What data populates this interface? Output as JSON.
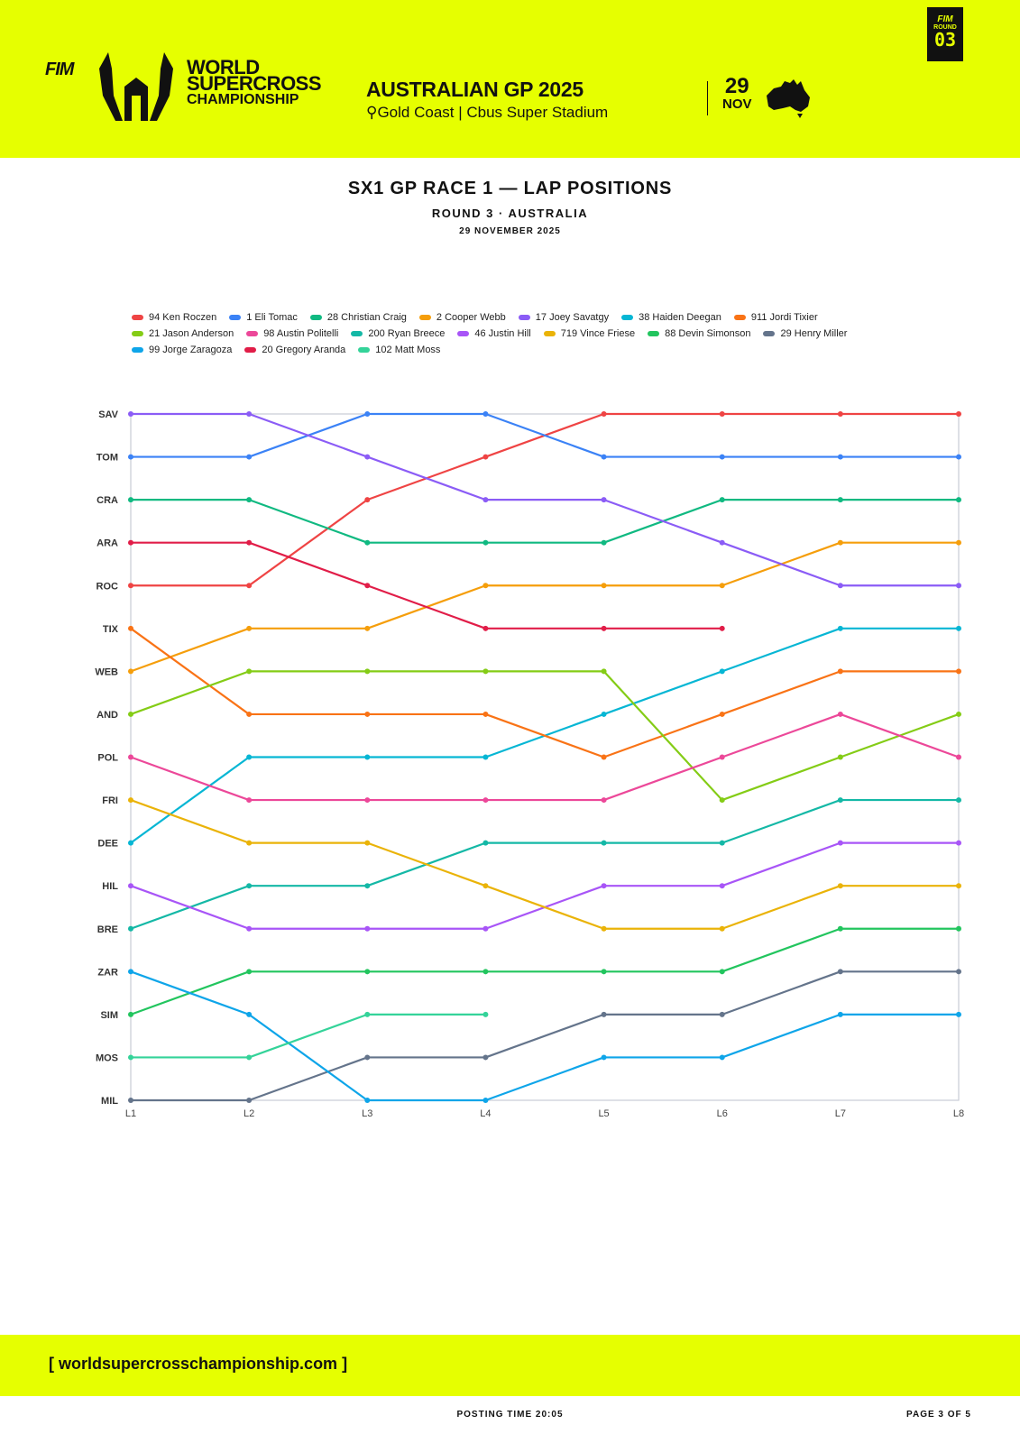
{
  "header": {
    "fim": "FIM",
    "brand_line1": "WORLD",
    "brand_line2": "SUPERCROSS",
    "brand_line3": "CHAMPIONSHIP",
    "event_title": "AUSTRALIAN GP 2025",
    "venue": "Gold Coast | Cbus Super Stadium",
    "date_day": "29",
    "date_month": "NOV",
    "round_label": "ROUND",
    "round_number": "03",
    "brand_color": "#e6ff00"
  },
  "titles": {
    "title": "SX1 GP RACE 1 — LAP POSITIONS",
    "subtitle": "ROUND 3 · AUSTRALIA",
    "date": "29 NOVEMBER 2025"
  },
  "chart_data": {
    "type": "line",
    "title": "SX1 GP RACE 1 — LAP POSITIONS",
    "x": [
      "L1",
      "L2",
      "L3",
      "L4",
      "L5",
      "L6",
      "L7",
      "L8"
    ],
    "y_tick_labels": [
      "SAV",
      "TOM",
      "CRA",
      "ARA",
      "ROC",
      "TIX",
      "WEB",
      "AND",
      "POL",
      "FRI",
      "DEE",
      "HIL",
      "BRE",
      "ZAR",
      "SIM",
      "MOS",
      "MIL"
    ],
    "ylim": [
      1,
      17
    ],
    "y_inverted": true,
    "legend_position": "top",
    "series": [
      {
        "name": "94 Ken Roczen",
        "color": "#ef4444",
        "values": [
          5,
          5,
          3,
          2,
          1,
          1,
          1,
          1
        ]
      },
      {
        "name": "1 Eli Tomac",
        "color": "#3b82f6",
        "values": [
          2,
          2,
          1,
          1,
          2,
          2,
          2,
          2
        ]
      },
      {
        "name": "28 Christian Craig",
        "color": "#10b981",
        "values": [
          3,
          3,
          4,
          4,
          4,
          3,
          3,
          3
        ]
      },
      {
        "name": "2 Cooper Webb",
        "color": "#f59e0b",
        "values": [
          7,
          6,
          6,
          5,
          5,
          5,
          4,
          4
        ]
      },
      {
        "name": "17 Joey Savatgy",
        "color": "#8b5cf6",
        "values": [
          1,
          1,
          2,
          3,
          3,
          4,
          5,
          5
        ]
      },
      {
        "name": "38 Haiden Deegan",
        "color": "#06b6d4",
        "values": [
          11,
          9,
          9,
          9,
          8,
          7,
          6,
          6
        ]
      },
      {
        "name": "911 Jordi Tixier",
        "color": "#f97316",
        "values": [
          6,
          8,
          8,
          8,
          9,
          8,
          7,
          7
        ]
      },
      {
        "name": "21 Jason Anderson",
        "color": "#84cc16",
        "values": [
          8,
          7,
          7,
          7,
          7,
          10,
          9,
          8
        ]
      },
      {
        "name": "98 Austin Politelli",
        "color": "#ec4899",
        "values": [
          9,
          10,
          10,
          10,
          10,
          9,
          8,
          9
        ]
      },
      {
        "name": "200 Ryan Breece",
        "color": "#14b8a6",
        "values": [
          13,
          12,
          12,
          11,
          11,
          11,
          10,
          10
        ]
      },
      {
        "name": "46 Justin Hill",
        "color": "#a855f7",
        "values": [
          12,
          13,
          13,
          13,
          12,
          12,
          11,
          11
        ]
      },
      {
        "name": "719 Vince Friese",
        "color": "#eab308",
        "values": [
          10,
          11,
          11,
          12,
          13,
          13,
          12,
          12
        ]
      },
      {
        "name": "88 Devin Simonson",
        "color": "#22c55e",
        "values": [
          15,
          14,
          14,
          14,
          14,
          14,
          13,
          13
        ]
      },
      {
        "name": "29 Henry Miller",
        "color": "#64748b",
        "values": [
          17,
          17,
          16,
          16,
          15,
          15,
          14,
          14
        ]
      },
      {
        "name": "99 Jorge Zaragoza",
        "color": "#0ea5e9",
        "values": [
          14,
          15,
          17,
          17,
          16,
          16,
          15,
          15
        ]
      },
      {
        "name": "20 Gregory Aranda",
        "color": "#e11d48",
        "values": [
          4,
          4,
          5,
          6,
          6,
          6,
          null,
          null
        ]
      },
      {
        "name": "102 Matt Moss",
        "color": "#34d399",
        "values": [
          16,
          16,
          15,
          15,
          null,
          null,
          null,
          null
        ]
      }
    ]
  },
  "footer": {
    "website": "[ worldsupercrosschampionship.com ]",
    "posting_time": "POSTING TIME 20:05",
    "page": "PAGE 3 OF 5"
  }
}
